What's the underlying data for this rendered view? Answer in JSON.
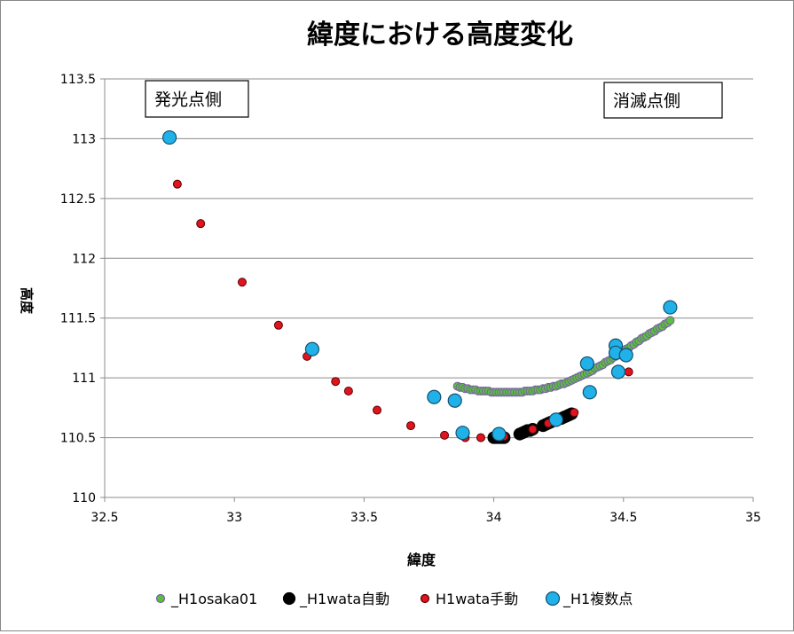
{
  "chart_data": {
    "type": "scatter",
    "title": "緯度における高度変化",
    "xlabel": "緯度",
    "ylabel": "高度",
    "xlim": [
      32.5,
      35
    ],
    "ylim": [
      110,
      113.5
    ],
    "x_ticks": [
      "32.5",
      "33",
      "33.5",
      "34",
      "34.5",
      "35"
    ],
    "y_ticks": [
      "110",
      "110.5",
      "111",
      "111.5",
      "112",
      "112.5",
      "113",
      "113.5"
    ],
    "grid": "horizontal",
    "legend_position": "bottom",
    "annotations": [
      {
        "text": "発光点側",
        "at": "top-left"
      },
      {
        "text": "消滅点側",
        "at": "top-right"
      }
    ],
    "series": [
      {
        "name": "_H1osaka01",
        "marker": "circle-small",
        "color": "#5bbf3f",
        "edge": "#7a5fa8",
        "points": [
          [
            33.86,
            110.93
          ],
          [
            33.87,
            110.92
          ],
          [
            33.88,
            110.92
          ],
          [
            33.89,
            110.91
          ],
          [
            33.9,
            110.91
          ],
          [
            33.91,
            110.9
          ],
          [
            33.92,
            110.9
          ],
          [
            33.93,
            110.9
          ],
          [
            33.94,
            110.89
          ],
          [
            33.95,
            110.89
          ],
          [
            33.96,
            110.89
          ],
          [
            33.97,
            110.89
          ],
          [
            33.98,
            110.89
          ],
          [
            33.99,
            110.88
          ],
          [
            34.0,
            110.88
          ],
          [
            34.01,
            110.88
          ],
          [
            34.02,
            110.88
          ],
          [
            34.03,
            110.88
          ],
          [
            34.04,
            110.88
          ],
          [
            34.05,
            110.88
          ],
          [
            34.06,
            110.88
          ],
          [
            34.07,
            110.88
          ],
          [
            34.08,
            110.88
          ],
          [
            34.09,
            110.88
          ],
          [
            34.1,
            110.88
          ],
          [
            34.11,
            110.88
          ],
          [
            34.12,
            110.89
          ],
          [
            34.13,
            110.89
          ],
          [
            34.14,
            110.89
          ],
          [
            34.15,
            110.89
          ],
          [
            34.16,
            110.9
          ],
          [
            34.17,
            110.9
          ],
          [
            34.18,
            110.9
          ],
          [
            34.19,
            110.91
          ],
          [
            34.2,
            110.91
          ],
          [
            34.21,
            110.92
          ],
          [
            34.22,
            110.92
          ],
          [
            34.23,
            110.93
          ],
          [
            34.24,
            110.93
          ],
          [
            34.25,
            110.94
          ],
          [
            34.26,
            110.95
          ],
          [
            34.27,
            110.95
          ],
          [
            34.28,
            110.96
          ],
          [
            34.29,
            110.97
          ],
          [
            34.3,
            110.98
          ],
          [
            34.31,
            110.99
          ],
          [
            34.32,
            111.0
          ],
          [
            34.33,
            111.01
          ],
          [
            34.34,
            111.02
          ],
          [
            34.35,
            111.03
          ],
          [
            34.36,
            111.04
          ],
          [
            34.37,
            111.05
          ],
          [
            34.38,
            111.06
          ],
          [
            34.39,
            111.08
          ],
          [
            34.4,
            111.09
          ],
          [
            34.41,
            111.1
          ],
          [
            34.42,
            111.11
          ],
          [
            34.43,
            111.13
          ],
          [
            34.44,
            111.14
          ],
          [
            34.45,
            111.15
          ],
          [
            34.46,
            111.17
          ],
          [
            34.47,
            111.18
          ],
          [
            34.48,
            111.19
          ],
          [
            34.49,
            111.21
          ],
          [
            34.5,
            111.22
          ],
          [
            34.51,
            111.24
          ],
          [
            34.52,
            111.25
          ],
          [
            34.53,
            111.27
          ],
          [
            34.54,
            111.28
          ],
          [
            34.55,
            111.3
          ],
          [
            34.56,
            111.31
          ],
          [
            34.57,
            111.33
          ],
          [
            34.58,
            111.34
          ],
          [
            34.59,
            111.35
          ],
          [
            34.6,
            111.37
          ],
          [
            34.61,
            111.38
          ],
          [
            34.62,
            111.39
          ],
          [
            34.63,
            111.41
          ],
          [
            34.64,
            111.42
          ],
          [
            34.65,
            111.43
          ],
          [
            34.66,
            111.45
          ],
          [
            34.67,
            111.46
          ],
          [
            34.68,
            111.48
          ]
        ]
      },
      {
        "name": "_H1wata自動",
        "marker": "circle-medium",
        "color": "#000000",
        "edge": "#000000",
        "points": [
          [
            34.0,
            110.5
          ],
          [
            34.01,
            110.5
          ],
          [
            34.02,
            110.5
          ],
          [
            34.03,
            110.5
          ],
          [
            34.04,
            110.5
          ],
          [
            34.1,
            110.53
          ],
          [
            34.11,
            110.54
          ],
          [
            34.12,
            110.55
          ],
          [
            34.13,
            110.56
          ],
          [
            34.14,
            110.56
          ],
          [
            34.15,
            110.57
          ],
          [
            34.19,
            110.6
          ],
          [
            34.2,
            110.61
          ],
          [
            34.21,
            110.62
          ],
          [
            34.22,
            110.63
          ],
          [
            34.26,
            110.66
          ],
          [
            34.27,
            110.67
          ],
          [
            34.28,
            110.68
          ],
          [
            34.29,
            110.69
          ],
          [
            34.3,
            110.7
          ]
        ]
      },
      {
        "name": "H1wata手動",
        "marker": "circle-small",
        "color": "#e0141e",
        "edge": "#5a0000",
        "points": [
          [
            32.78,
            112.62
          ],
          [
            32.87,
            112.29
          ],
          [
            33.03,
            111.8
          ],
          [
            33.17,
            111.44
          ],
          [
            33.28,
            111.18
          ],
          [
            33.39,
            110.97
          ],
          [
            33.44,
            110.89
          ],
          [
            33.55,
            110.73
          ],
          [
            33.68,
            110.6
          ],
          [
            33.81,
            110.52
          ],
          [
            33.89,
            110.5
          ],
          [
            33.95,
            110.5
          ],
          [
            34.04,
            110.51
          ],
          [
            34.15,
            110.57
          ],
          [
            34.21,
            110.62
          ],
          [
            34.31,
            110.71
          ],
          [
            34.52,
            111.05
          ]
        ]
      },
      {
        "name": "_H1複数点",
        "marker": "circle-large",
        "color": "#1fb1e8",
        "edge": "#14506e",
        "points": [
          [
            32.75,
            113.01
          ],
          [
            33.3,
            111.24
          ],
          [
            33.77,
            110.84
          ],
          [
            33.85,
            110.81
          ],
          [
            33.88,
            110.54
          ],
          [
            34.02,
            110.53
          ],
          [
            34.24,
            110.65
          ],
          [
            34.36,
            111.12
          ],
          [
            34.37,
            110.88
          ],
          [
            34.47,
            111.27
          ],
          [
            34.47,
            111.21
          ],
          [
            34.48,
            111.05
          ],
          [
            34.51,
            111.19
          ],
          [
            34.68,
            111.59
          ]
        ]
      }
    ]
  }
}
